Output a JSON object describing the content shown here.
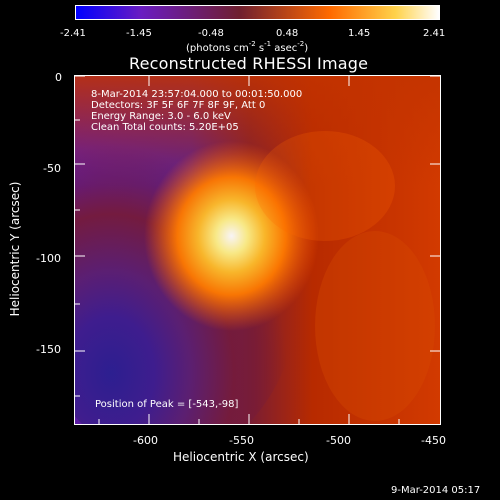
{
  "colorbar": {
    "ticks": [
      "-2.41",
      "-1.45",
      "-0.48",
      "0.48",
      "1.45",
      "2.41"
    ],
    "units_prefix": "(photons cm",
    "units_exp1": "-2",
    "units_mid": " s",
    "units_exp2": "-1",
    "units_mid2": " asec",
    "units_exp3": "-2",
    "units_suffix": ")",
    "colors": {
      "low": "#0000ff",
      "mid_low": "#6a1cc1",
      "zero": "#6f1f2f",
      "mid_high": "#ff6a00",
      "high": "#ffffff"
    }
  },
  "plot": {
    "title": "Reconstructed RHESSI Image",
    "xlabel": "Heliocentric X (arcsec)",
    "ylabel": "Heliocentric Y (arcsec)",
    "x_ticks": [
      "-600",
      "-550",
      "-500",
      "-450"
    ],
    "y_ticks": [
      "0",
      "-50",
      "-100",
      "-150"
    ],
    "info_lines": [
      "8-Mar-2014 23:57:04.000 to 00:01:50.000",
      "Detectors: 3F 5F 6F 7F 8F 9F, Att 0",
      "Energy Range: 3.0 - 6.0 keV",
      "Clean    Total counts: 5.20E+05"
    ],
    "peak_label": "Position of Peak = [-543,-98]",
    "footer": "9-Mar-2014 05:17"
  }
}
